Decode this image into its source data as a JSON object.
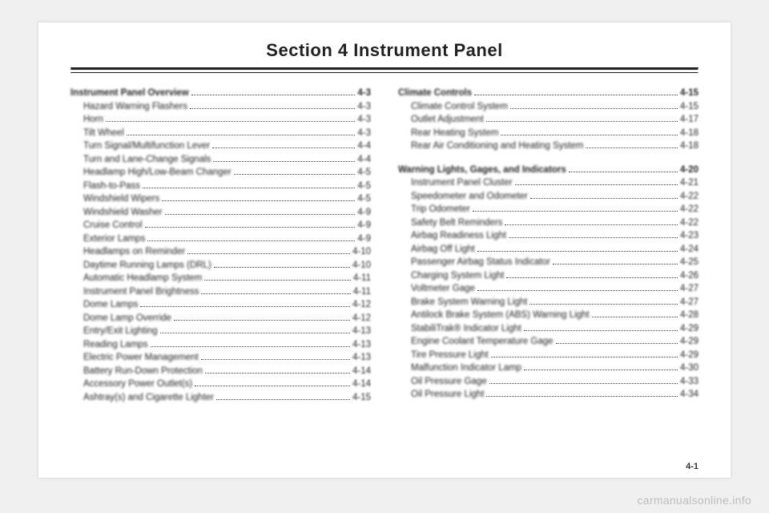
{
  "title": "Section 4    Instrument Panel",
  "watermark": "carmanualsonline.info",
  "footer_page": "4-1",
  "left": [
    {
      "label": "Instrument Panel Overview",
      "page": "4-3",
      "head": true
    },
    {
      "label": "Hazard Warning Flashers",
      "page": "4-3"
    },
    {
      "label": "Horn",
      "page": "4-3"
    },
    {
      "label": "Tilt Wheel",
      "page": "4-3"
    },
    {
      "label": "Turn Signal/Multifunction Lever",
      "page": "4-4"
    },
    {
      "label": "Turn and Lane-Change Signals",
      "page": "4-4"
    },
    {
      "label": "Headlamp High/Low-Beam Changer",
      "page": "4-5"
    },
    {
      "label": "Flash-to-Pass",
      "page": "4-5"
    },
    {
      "label": "Windshield Wipers",
      "page": "4-5"
    },
    {
      "label": "Windshield Washer",
      "page": "4-9"
    },
    {
      "label": "Cruise Control",
      "page": "4-9"
    },
    {
      "label": "Exterior Lamps",
      "page": "4-9"
    },
    {
      "label": "Headlamps on Reminder",
      "page": "4-10"
    },
    {
      "label": "Daytime Running Lamps (DRL)",
      "page": "4-10"
    },
    {
      "label": "Automatic Headlamp System",
      "page": "4-11"
    },
    {
      "label": "Instrument Panel Brightness",
      "page": "4-11"
    },
    {
      "label": "Dome Lamps",
      "page": "4-12"
    },
    {
      "label": "Dome Lamp Override",
      "page": "4-12"
    },
    {
      "label": "Entry/Exit Lighting",
      "page": "4-13"
    },
    {
      "label": "Reading Lamps",
      "page": "4-13"
    },
    {
      "label": "Electric Power Management",
      "page": "4-13"
    },
    {
      "label": "Battery Run-Down Protection",
      "page": "4-14"
    },
    {
      "label": "Accessory Power Outlet(s)",
      "page": "4-14"
    },
    {
      "label": "Ashtray(s) and Cigarette Lighter",
      "page": "4-15"
    }
  ],
  "right": [
    {
      "label": "Climate Controls",
      "page": "4-15",
      "head": true
    },
    {
      "label": "Climate Control System",
      "page": "4-15"
    },
    {
      "label": "Outlet Adjustment",
      "page": "4-17"
    },
    {
      "label": "Rear Heating System",
      "page": "4-18"
    },
    {
      "label": "Rear Air Conditioning and Heating System",
      "page": "4-18"
    },
    {
      "gap": true
    },
    {
      "label": "Warning Lights, Gages, and Indicators",
      "page": "4-20",
      "head": true
    },
    {
      "label": "Instrument Panel Cluster",
      "page": "4-21"
    },
    {
      "label": "Speedometer and Odometer",
      "page": "4-22"
    },
    {
      "label": "Trip Odometer",
      "page": "4-22"
    },
    {
      "label": "Safety Belt Reminders",
      "page": "4-22"
    },
    {
      "label": "Airbag Readiness Light",
      "page": "4-23"
    },
    {
      "label": "Airbag Off Light",
      "page": "4-24"
    },
    {
      "label": "Passenger Airbag Status Indicator",
      "page": "4-25"
    },
    {
      "label": "Charging System Light",
      "page": "4-26"
    },
    {
      "label": "Voltmeter Gage",
      "page": "4-27"
    },
    {
      "label": "Brake System Warning Light",
      "page": "4-27"
    },
    {
      "label": "Antilock Brake System (ABS) Warning Light",
      "page": "4-28"
    },
    {
      "label": "StabiliTrak® Indicator Light",
      "page": "4-29"
    },
    {
      "label": "Engine Coolant Temperature Gage",
      "page": "4-29"
    },
    {
      "label": "Tire Pressure Light",
      "page": "4-29"
    },
    {
      "label": "Malfunction Indicator Lamp",
      "page": "4-30"
    },
    {
      "label": "Oil Pressure Gage",
      "page": "4-33"
    },
    {
      "label": "Oil Pressure Light",
      "page": "4-34"
    }
  ]
}
